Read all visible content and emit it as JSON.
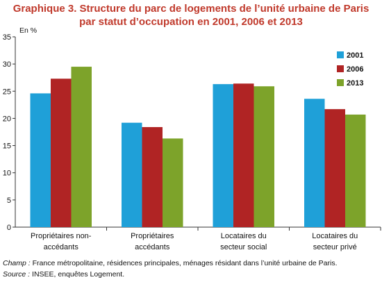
{
  "title_line1": "Graphique 3. Structure du parc de logements de l’unité urbaine de Paris",
  "title_line2": "par statut d’occupation en 2001, 2006 et 2013",
  "notes": {
    "champ_label": "Champ :",
    "champ_text": "France métropolitaine, résidences principales, ménages résidant dans l’unité urbaine de Paris.",
    "source_label": "Source :",
    "source_text": "INSEE, enquêtes Logement."
  },
  "chart_data": {
    "type": "bar",
    "ylabel": "En %",
    "ylim": [
      0,
      35
    ],
    "yticks": [
      0,
      5,
      10,
      15,
      20,
      25,
      30,
      35
    ],
    "grid": false,
    "legend_position": "top-right",
    "categories": [
      [
        "Propriétaires non-",
        "accédants"
      ],
      [
        "Propriétaires",
        "accédants"
      ],
      [
        "Locataires du",
        "secteur social"
      ],
      [
        "Locataires du",
        "secteur privé"
      ]
    ],
    "series": [
      {
        "name": "2001",
        "color": "#1fa0d8",
        "values": [
          24.6,
          19.2,
          26.3,
          23.6
        ]
      },
      {
        "name": "2006",
        "color": "#b02424",
        "values": [
          27.3,
          18.4,
          26.4,
          21.7
        ]
      },
      {
        "name": "2013",
        "color": "#7da32a",
        "values": [
          29.5,
          16.3,
          25.9,
          20.7
        ]
      }
    ]
  }
}
